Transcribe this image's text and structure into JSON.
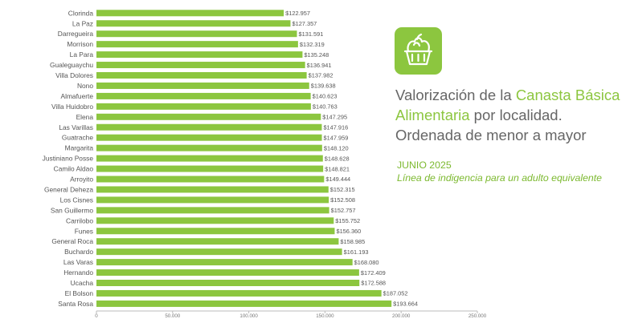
{
  "title": {
    "part1": "Valorización de la ",
    "highlight": "Canasta Básica Alimentaria",
    "part2": " por localidad.",
    "line3": "Ordenada de menor a mayor"
  },
  "subtitle": {
    "date": "JUNIO 2025",
    "description": "Línea de indigencia para un adulto equivalente"
  },
  "icon": "basket-with-vegetables-icon",
  "colors": {
    "bar": "#8cc63f",
    "highlight": "#8cc63f",
    "text": "#666666"
  },
  "chart_data": {
    "type": "bar",
    "orientation": "horizontal",
    "categories": [
      "Clorinda",
      "La Paz",
      "Darregueira",
      "Morrison",
      "La Para",
      "Gualeguaychu",
      "Villa Dolores",
      "Nono",
      "Almafuerte",
      "Villa Huidobro",
      "Elena",
      "Las Varillas",
      "Guatrache",
      "Margarita",
      "Justiniano Posse",
      "Camilo Aldao",
      "Arroyito",
      "General Deheza",
      "Los Cisnes",
      "San Guillermo",
      "Carrilobo",
      "Funes",
      "General Roca",
      "Buchardo",
      "Las Varas",
      "Hernando",
      "Ucacha",
      "El Bolson",
      "Santa Rosa"
    ],
    "values": [
      122957,
      127357,
      131591,
      132319,
      135248,
      136941,
      137982,
      139638,
      140623,
      140763,
      147295,
      147916,
      147959,
      148120,
      148628,
      148821,
      149444,
      152315,
      152508,
      152757,
      155752,
      156360,
      158985,
      161193,
      168080,
      172409,
      172588,
      187052,
      193664
    ],
    "value_labels": [
      "$122.957",
      "$127.357",
      "$131.591",
      "$132.319",
      "$135.248",
      "$136.941",
      "$137.982",
      "$139.638",
      "$140.623",
      "$140.763",
      "$147.295",
      "$147.916",
      "$147.959",
      "$148.120",
      "$148.628",
      "$148.821",
      "$149.444",
      "$152.315",
      "$152.508",
      "$152.757",
      "$155.752",
      "$156.360",
      "$158.985",
      "$161.193",
      "$168.080",
      "$172.409",
      "$172.588",
      "$187.052",
      "$193.664"
    ],
    "xlim": [
      0,
      250000
    ],
    "xticks": [
      0,
      50000,
      100000,
      150000,
      200000,
      250000
    ],
    "xtick_labels": [
      "0",
      "50.000",
      "100.000",
      "150.000",
      "200.000",
      "250.000"
    ],
    "grid": false,
    "legend": "none"
  }
}
